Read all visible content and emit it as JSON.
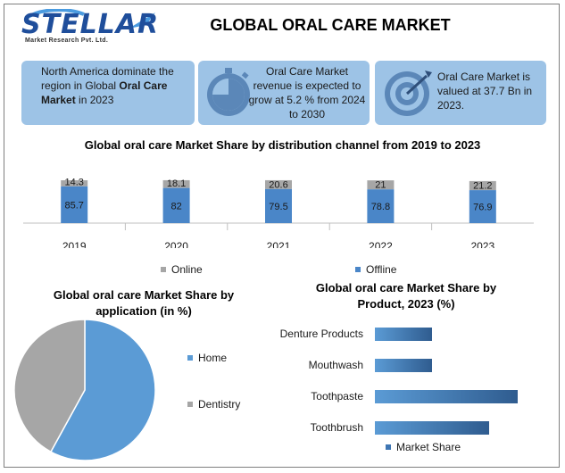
{
  "logo": {
    "name": "STELLAR",
    "subtitle": "Market Research Pvt. Ltd."
  },
  "title": "GLOBAL ORAL CARE MARKET",
  "cards": [
    {
      "pre": "North America dominate the region in Global ",
      "bold": "Oral Care Market",
      "post": " in 2023"
    },
    {
      "text": "Oral Care Market revenue is expected to grow at 5.2 % from 2024 to 2030"
    },
    {
      "text": "Oral Care Market is valued at 37.7 Bn in 2023."
    }
  ],
  "colors": {
    "card_bg": "#9dc3e6",
    "online": "#a6a6a6",
    "offline": "#4a86c8",
    "pie_home": "#5b9bd5",
    "pie_dentistry": "#a6a6a6",
    "bar_dark": "#2f5c8f",
    "bar_light": "#5b9bd5"
  },
  "icons": {
    "card2": "stopwatch-icon",
    "card3": "target-icon"
  },
  "chart_data": [
    {
      "type": "bar",
      "title": "Global oral care Market Share by distribution channel from 2019 to 2023",
      "stacked": true,
      "categories": [
        "2019",
        "2020",
        "2021",
        "2022",
        "2023"
      ],
      "series": [
        {
          "name": "Offline",
          "values": [
            "85.7",
            "82",
            "79.5",
            "78.8",
            "76.9"
          ]
        },
        {
          "name": "Online",
          "values": [
            "14.3",
            "18.1",
            "20.6",
            "21",
            "21.2"
          ]
        }
      ],
      "legend": "bottom"
    },
    {
      "type": "pie",
      "title": "Global oral care Market Share by application (in %)",
      "labels": [
        "Home",
        "Dentistry"
      ],
      "values": [
        58,
        42
      ],
      "legend": "right"
    },
    {
      "type": "bar",
      "orientation": "horizontal",
      "title": "Global oral care Market Share by Product, 2023 (%)",
      "categories": [
        "Denture Products",
        "Mouthwash",
        "Toothpaste",
        "Toothbrush"
      ],
      "series": [
        {
          "name": "Market Share",
          "values": [
            20,
            20,
            50,
            40
          ]
        }
      ],
      "xlim": [
        0,
        55
      ],
      "legend": "bottom"
    }
  ]
}
